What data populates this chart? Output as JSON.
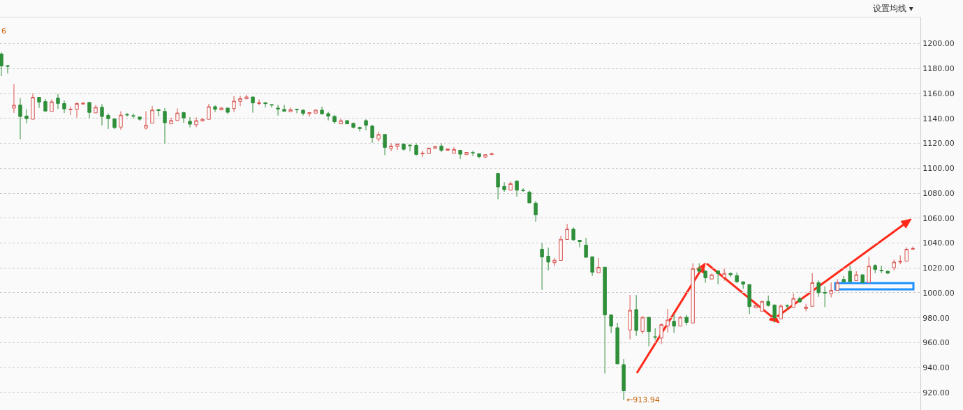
{
  "chart_data": {
    "type": "candlestick",
    "categories": [
      null,
      null,
      null,
      null,
      null,
      null,
      null,
      null,
      null,
      null,
      null,
      null,
      null,
      null,
      null,
      null,
      null,
      null,
      null,
      null,
      null,
      null,
      null,
      null,
      null,
      null,
      null,
      null,
      null,
      null,
      null,
      null,
      null,
      null,
      null,
      null,
      null,
      null,
      null,
      null,
      null,
      null,
      null,
      null,
      null,
      null,
      null,
      null,
      null,
      null,
      null,
      null,
      null,
      null,
      null,
      null,
      null,
      null,
      null,
      null,
      null,
      null,
      null,
      null,
      null,
      null,
      null,
      null,
      null,
      null,
      null,
      null,
      null,
      null,
      null,
      null,
      null,
      null,
      null,
      null,
      null,
      null,
      null,
      null,
      null,
      null,
      null,
      null,
      null,
      null,
      null,
      null,
      null,
      null,
      null,
      null,
      null,
      null,
      null,
      null,
      null,
      null,
      null,
      null,
      null,
      null,
      null,
      null,
      null,
      null,
      null,
      null,
      null,
      null,
      null,
      null,
      null,
      null,
      null,
      null,
      null,
      null,
      null,
      null,
      null,
      null,
      null,
      null,
      null,
      null,
      null,
      null,
      null,
      null,
      null,
      null,
      null,
      null,
      null,
      null,
      null,
      null,
      null,
      null,
      null,
      null
    ],
    "ohlc": [
      [
        1191.7,
        1193,
        1174,
        1182
      ],
      [
        1182.3,
        1182.8,
        1176,
        1181.8
      ],
      [
        1148.3,
        1167.4,
        1144.4,
        1150.6
      ],
      [
        1150.7,
        1156.3,
        1123.1,
        1141.5
      ],
      [
        1141.9,
        1147.4,
        1135.9,
        1139.8
      ],
      [
        1139.3,
        1160,
        1139.3,
        1156.9
      ],
      [
        1156.9,
        1156.9,
        1148.5,
        1153.1
      ],
      [
        1153.5,
        1155.6,
        1145.2,
        1145.9
      ],
      [
        1145.6,
        1155.2,
        1145.6,
        1153.3
      ],
      [
        1156.3,
        1159.6,
        1147.6,
        1152
      ],
      [
        1151.9,
        1154.4,
        1144.3,
        1147.6
      ],
      [
        1147,
        1149.4,
        1142.6,
        1147.4
      ],
      [
        1147.2,
        1152.6,
        1140.6,
        1151.9
      ],
      [
        1151.5,
        1153.3,
        1151.1,
        1152
      ],
      [
        1152.8,
        1152.8,
        1140.2,
        1144.8
      ],
      [
        1144.4,
        1150.7,
        1144.4,
        1148.9
      ],
      [
        1148.9,
        1151.5,
        1134.3,
        1141.5
      ],
      [
        1142.4,
        1144.1,
        1131.5,
        1139.8
      ],
      [
        1139.6,
        1139.6,
        1131.5,
        1132.6
      ],
      [
        1133,
        1145.7,
        1130.9,
        1142.6
      ],
      [
        1143.2,
        1144.4,
        1141.5,
        1142.8
      ],
      [
        1142.2,
        1143.9,
        1140,
        1141.8
      ],
      [
        1141.1,
        1141.1,
        1138.1,
        1139.3
      ],
      [
        1132.2,
        1145.7,
        1131.1,
        1134.4
      ],
      [
        1136.1,
        1150,
        1136.1,
        1146.7
      ],
      [
        1147,
        1147.4,
        1141.5,
        1146.3
      ],
      [
        1145.6,
        1148.3,
        1119.8,
        1136.5
      ],
      [
        1135.6,
        1140.6,
        1135.6,
        1138.3
      ],
      [
        1138.3,
        1148,
        1138.3,
        1144.3
      ],
      [
        1144.6,
        1145.4,
        1136.5,
        1140.4
      ],
      [
        1137.7,
        1141,
        1132.8,
        1135.4
      ],
      [
        1134.9,
        1140.8,
        1132.8,
        1138.2
      ],
      [
        1137.9,
        1139.9,
        1137.5,
        1139.3
      ],
      [
        1139.2,
        1151.6,
        1139.2,
        1149.4
      ],
      [
        1149.4,
        1150.5,
        1145.1,
        1147.3
      ],
      [
        1146.8,
        1149.2,
        1146.8,
        1148.3
      ],
      [
        1148.3,
        1148.3,
        1143.4,
        1144.9
      ],
      [
        1147.9,
        1157.8,
        1145.1,
        1153.9
      ],
      [
        1153.7,
        1158.1,
        1149.8,
        1155.9
      ],
      [
        1155.7,
        1159.1,
        1155.7,
        1157.2
      ],
      [
        1157.2,
        1157.2,
        1144.6,
        1152.4
      ],
      [
        1151.9,
        1155.3,
        1150.5,
        1152.6
      ],
      [
        1152.6,
        1152.6,
        1148.7,
        1151.8
      ],
      [
        1151.1,
        1151.1,
        1148.7,
        1150.7
      ],
      [
        1148.3,
        1150.9,
        1142.3,
        1147.5
      ],
      [
        1147.2,
        1150.9,
        1145.7,
        1145.7
      ],
      [
        1145.3,
        1148.7,
        1145.3,
        1147
      ],
      [
        1147.4,
        1147.4,
        1144.2,
        1147
      ],
      [
        1146.6,
        1147.2,
        1142.3,
        1144
      ],
      [
        1143.8,
        1145.1,
        1141.2,
        1144.6
      ],
      [
        1144.2,
        1147.2,
        1144.2,
        1146.6
      ],
      [
        1146.6,
        1149.4,
        1143.1,
        1143.6
      ],
      [
        1143.8,
        1145.3,
        1138.4,
        1141.8
      ],
      [
        1141.6,
        1142.7,
        1135.6,
        1137.3
      ],
      [
        1135.6,
        1139.7,
        1135.6,
        1138.2
      ],
      [
        1138.2,
        1138.6,
        1135.6,
        1135.6
      ],
      [
        1136,
        1136.7,
        1131.9,
        1132.8
      ],
      [
        1132.7,
        1133.4,
        1129.5,
        1131.9
      ],
      [
        1138.2,
        1139.3,
        1130.4,
        1134.5
      ],
      [
        1133.8,
        1134.9,
        1120.4,
        1124.5
      ],
      [
        1123.5,
        1129.3,
        1121.3,
        1127.1
      ],
      [
        1127.1,
        1127.1,
        1110.5,
        1116.7
      ],
      [
        1115.9,
        1120,
        1113.7,
        1117.8
      ],
      [
        1117.4,
        1120,
        1114.6,
        1119.3
      ],
      [
        1119.4,
        1119.4,
        1114,
        1115.2
      ],
      [
        1118.5,
        1119.4,
        1113.5,
        1118.1
      ],
      [
        1118.3,
        1120,
        1110.1,
        1111.1
      ],
      [
        1111.5,
        1114,
        1109,
        1112
      ],
      [
        1111.8,
        1116.6,
        1111.8,
        1116.1
      ],
      [
        1115.9,
        1118.1,
        1115.9,
        1117.4
      ],
      [
        1117.8,
        1120,
        1112.9,
        1114.4
      ],
      [
        1114.4,
        1115.5,
        1114.4,
        1115.5
      ],
      [
        1112,
        1117,
        1112,
        1115
      ],
      [
        1114.4,
        1114.4,
        1107.5,
        1111.3
      ],
      [
        1110.9,
        1113.1,
        1110.9,
        1112.7
      ],
      [
        1112.6,
        1114,
        1109.8,
        1112.2
      ],
      [
        1111.6,
        1111.6,
        1107.9,
        1109.4
      ],
      [
        1109,
        1111.3,
        1107.9,
        1110.9
      ],
      [
        1111,
        1112.6,
        1111,
        1111.5
      ],
      [
        1095.8,
        1096.4,
        1075,
        1085
      ],
      [
        1085.4,
        1088.7,
        1081.1,
        1082.8
      ],
      [
        1082.4,
        1089.3,
        1082.4,
        1087.6
      ],
      [
        1089.7,
        1089.7,
        1077.2,
        1082.4
      ],
      [
        1082.4,
        1083.9,
        1081.1,
        1082
      ],
      [
        1080.9,
        1082,
        1072.2,
        1072.2
      ],
      [
        1072,
        1073.7,
        1057.1,
        1062.7
      ],
      [
        1035,
        1040,
        1002.4,
        1028.8
      ],
      [
        1029.4,
        1036.3,
        1018,
        1024.7
      ],
      [
        1024.2,
        1027.9,
        1021.4,
        1026.2
      ],
      [
        1026,
        1045.8,
        1026,
        1043
      ],
      [
        1042.8,
        1055.3,
        1042.8,
        1051.2
      ],
      [
        1051.2,
        1052.5,
        1041.5,
        1042.6
      ],
      [
        1042.2,
        1042.2,
        1036.5,
        1041.1
      ],
      [
        1038.3,
        1044.1,
        1028.5,
        1028.5
      ],
      [
        1029,
        1029,
        1013.6,
        1016.6
      ],
      [
        1016.2,
        1027.9,
        1016.2,
        1020.5
      ],
      [
        1020.6,
        1020.6,
        935.3,
        982.3
      ],
      [
        982.3,
        982.7,
        967.7,
        973.3
      ],
      [
        972,
        976,
        943,
        943
      ],
      [
        942.4,
        946.9,
        913.94,
        921.4
      ],
      [
        970.2,
        998.3,
        962.7,
        986
      ],
      [
        986.6,
        998.3,
        965.5,
        969.8
      ],
      [
        969,
        981.3,
        967.2,
        980.4
      ],
      [
        980.4,
        980.4,
        957.3,
        968.9
      ],
      [
        964.8,
        971.7,
        962.3,
        964.4
      ],
      [
        963.7,
        975.6,
        959,
        974.5
      ],
      [
        973.5,
        987.1,
        968,
        978.2
      ],
      [
        977.2,
        983.2,
        967.9,
        973.3
      ],
      [
        973.3,
        981.4,
        973.3,
        980.4
      ],
      [
        980.4,
        982.5,
        974,
        976.3
      ],
      [
        975.8,
        1023.8,
        975.8,
        1019.5
      ],
      [
        1019.5,
        1023.8,
        1016.3,
        1017.3
      ],
      [
        1017.5,
        1017.7,
        1008,
        1012.1
      ],
      [
        1011.1,
        1015.4,
        1011.1,
        1014.5
      ],
      [
        1017.7,
        1017.7,
        1006.9,
        1015.4
      ],
      [
        1012.6,
        1019.5,
        1009.8,
        1015.6
      ],
      [
        1015.6,
        1016.4,
        1012.8,
        1014.5
      ],
      [
        1013.9,
        1016.4,
        1008,
        1008.9
      ],
      [
        1008.9,
        1008.9,
        1003.3,
        1007
      ],
      [
        1006.7,
        1006.7,
        983,
        989
      ],
      [
        988.2,
        991.2,
        987.5,
        990
      ],
      [
        985.3,
        993.7,
        985.3,
        993.1
      ],
      [
        993.1,
        997.9,
        989,
        989.9
      ],
      [
        990.3,
        990.3,
        976,
        980
      ],
      [
        979.1,
        990.8,
        979.1,
        989.4
      ],
      [
        989.7,
        990.8,
        986.7,
        989.4
      ],
      [
        988.4,
        999.4,
        988.4,
        995.5
      ],
      [
        995.5,
        996.8,
        992.2,
        992.7
      ],
      [
        987.5,
        991.2,
        985.3,
        988.6
      ],
      [
        989.2,
        1015.8,
        989.2,
        1008.2
      ],
      [
        1008.2,
        1010,
        996.8,
        1000.1
      ],
      [
        1000.3,
        1005.2,
        988.6,
        999.9
      ],
      [
        999.2,
        1008.3,
        996.4,
        1002
      ],
      [
        1002,
        1011,
        1002,
        1008
      ],
      [
        1010.8,
        1013.6,
        1008.9,
        1008.9
      ],
      [
        1017.3,
        1021.9,
        1008.9,
        1008.9
      ],
      [
        1009.8,
        1017.3,
        1009.8,
        1014.5
      ],
      [
        1014.5,
        1014.9,
        1008.3,
        1008.3
      ],
      [
        1008.3,
        1028.8,
        1008.3,
        1021.4
      ],
      [
        1021.9,
        1022.9,
        1015.8,
        1018.8
      ],
      [
        1018.2,
        1021.7,
        1015.8,
        1017.8
      ],
      [
        1017.3,
        1017.9,
        1015,
        1015.8
      ],
      [
        1020.1,
        1026.6,
        1018.2,
        1024.7
      ],
      [
        1024.7,
        1030,
        1022.9,
        1025.5
      ],
      [
        1025.5,
        1036.6,
        1025.5,
        1035
      ],
      [
        1035,
        1037.2,
        1035,
        1035.6
      ]
    ],
    "colors": [
      "#2f8f3a",
      "#2f8f3a",
      "#d9534f",
      "#2f8f3a",
      "#2f8f3a",
      "#d9534f",
      "#2f8f3a",
      "#2f8f3a",
      "#d9534f",
      "#2f8f3a",
      "#2f8f3a",
      "#d9534f",
      "#d9534f",
      "#d9534f",
      "#2f8f3a",
      "#d9534f",
      "#2f8f3a",
      "#2f8f3a",
      "#2f8f3a",
      "#d9534f",
      "#2f8f3a",
      "#2f8f3a",
      "#2f8f3a",
      "#d9534f",
      "#d9534f",
      "#2f8f3a",
      "#2f8f3a",
      "#d9534f",
      "#d9534f",
      "#2f8f3a",
      "#2f8f3a",
      "#d9534f",
      "#d9534f",
      "#d9534f",
      "#2f8f3a",
      "#d9534f",
      "#2f8f3a",
      "#d9534f",
      "#d9534f",
      "#d9534f",
      "#2f8f3a",
      "#d9534f",
      "#2f8f3a",
      "#2f8f3a",
      "#2f8f3a",
      "#2f8f3a",
      "#d9534f",
      "#2f8f3a",
      "#2f8f3a",
      "#d9534f",
      "#d9534f",
      "#2f8f3a",
      "#2f8f3a",
      "#2f8f3a",
      "#d9534f",
      "#2f8f3a",
      "#2f8f3a",
      "#2f8f3a",
      "#2f8f3a",
      "#2f8f3a",
      "#d9534f",
      "#2f8f3a",
      "#d9534f",
      "#d9534f",
      "#2f8f3a",
      "#2f8f3a",
      "#2f8f3a",
      "#d9534f",
      "#d9534f",
      "#d9534f",
      "#2f8f3a",
      "#d9534f",
      "#d9534f",
      "#2f8f3a",
      "#d9534f",
      "#2f8f3a",
      "#2f8f3a",
      "#d9534f",
      "#d9534f",
      "#2f8f3a",
      "#2f8f3a",
      "#d9534f",
      "#2f8f3a",
      "#2f8f3a",
      "#2f8f3a",
      "#2f8f3a",
      "#2f8f3a",
      "#2f8f3a",
      "#d9534f",
      "#d9534f",
      "#d9534f",
      "#2f8f3a",
      "#2f8f3a",
      "#2f8f3a",
      "#2f8f3a",
      "#d9534f",
      "#2f8f3a",
      "#2f8f3a",
      "#2f8f3a",
      "#2f8f3a",
      "#d9534f",
      "#2f8f3a",
      "#d9534f",
      "#2f8f3a",
      "#2f8f3a",
      "#d9534f",
      "#d9534f",
      "#2f8f3a",
      "#d9534f",
      "#2f8f3a",
      "#d9534f",
      "#2f8f3a",
      "#2f8f3a",
      "#d9534f",
      "#2f8f3a",
      "#d9534f",
      "#2f8f3a",
      "#2f8f3a",
      "#2f8f3a",
      "#2f8f3a",
      "#d9534f",
      "#d9534f",
      "#2f8f3a",
      "#2f8f3a",
      "#d9534f",
      "#2f8f3a",
      "#d9534f",
      "#2f8f3a",
      "#d9534f",
      "#d9534f",
      "#2f8f3a",
      "#2f8f3a",
      "#d9534f",
      "#d9534f",
      "#2f8f3a",
      "#2f8f3a",
      "#d9534f",
      "#2f8f3a",
      "#d9534f",
      "#2f8f3a",
      "#2f8f3a",
      "#2f8f3a",
      "#d9534f",
      "#d9534f",
      "#d9534f",
      "#d9534f"
    ],
    "ylim": [
      906,
      1221
    ],
    "yticks": [
      {
        "value": 920,
        "label": "920.00"
      },
      {
        "value": 940,
        "label": "940.00"
      },
      {
        "value": 960,
        "label": "960.00"
      },
      {
        "value": 980,
        "label": "980.00"
      },
      {
        "value": 1000,
        "label": "1000.00"
      },
      {
        "value": 1020,
        "label": "1020.00"
      },
      {
        "value": 1040,
        "label": "1040.00"
      },
      {
        "value": 1060,
        "label": "1060.00"
      },
      {
        "value": 1080,
        "label": "1080.00"
      },
      {
        "value": 1100,
        "label": "1100.00"
      },
      {
        "value": 1120,
        "label": "1120.00"
      },
      {
        "value": 1140,
        "label": "1140.00"
      },
      {
        "value": 1160,
        "label": "1160.00"
      },
      {
        "value": 1180,
        "label": "1180.00"
      },
      {
        "value": 1200,
        "label": "1200.00"
      }
    ],
    "grid": "y",
    "legend": false,
    "annotations": [
      "设置均线 ▾",
      "6",
      "←913.94"
    ]
  }
}
